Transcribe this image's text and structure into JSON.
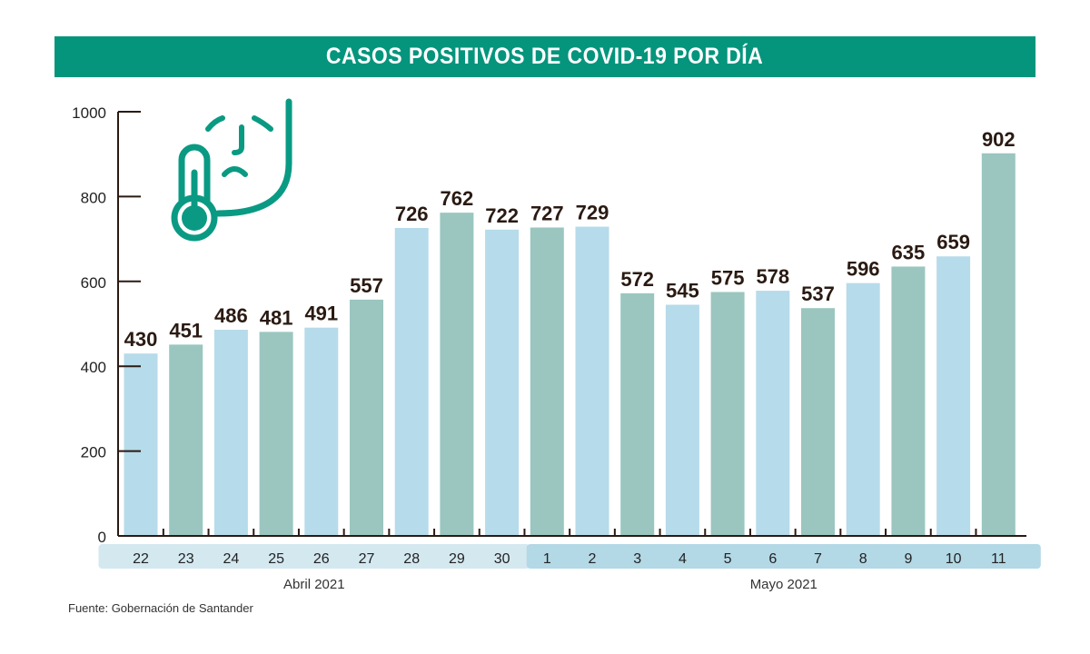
{
  "chart_data": {
    "type": "bar",
    "title": "CASOS POSITIVOS DE COVID-19 POR DÍA",
    "xlabel": "",
    "ylabel": "",
    "ylim": [
      0,
      1000
    ],
    "yticks": [
      "0",
      "200",
      "400",
      "600",
      "800",
      "1000"
    ],
    "categories": [
      "22",
      "23",
      "24",
      "25",
      "26",
      "27",
      "28",
      "29",
      "30",
      "1",
      "2",
      "3",
      "4",
      "5",
      "6",
      "7",
      "8",
      "9",
      "10",
      "11"
    ],
    "values": [
      430,
      451,
      486,
      481,
      491,
      557,
      726,
      762,
      722,
      727,
      729,
      572,
      545,
      575,
      578,
      537,
      596,
      635,
      659,
      902
    ],
    "groups": [
      {
        "label": "Abril 2021",
        "count": 9,
        "color": "#d4e8f0"
      },
      {
        "label": "Mayo 2021",
        "count": 11,
        "color": "#b3d8e6"
      }
    ],
    "colors": {
      "blue": "#b6dbea",
      "green": "#9ac6bf",
      "accent": "#04957c",
      "axis": "#2a1a12"
    },
    "grid": false
  },
  "source": "Fuente: Gobernación de Santander"
}
